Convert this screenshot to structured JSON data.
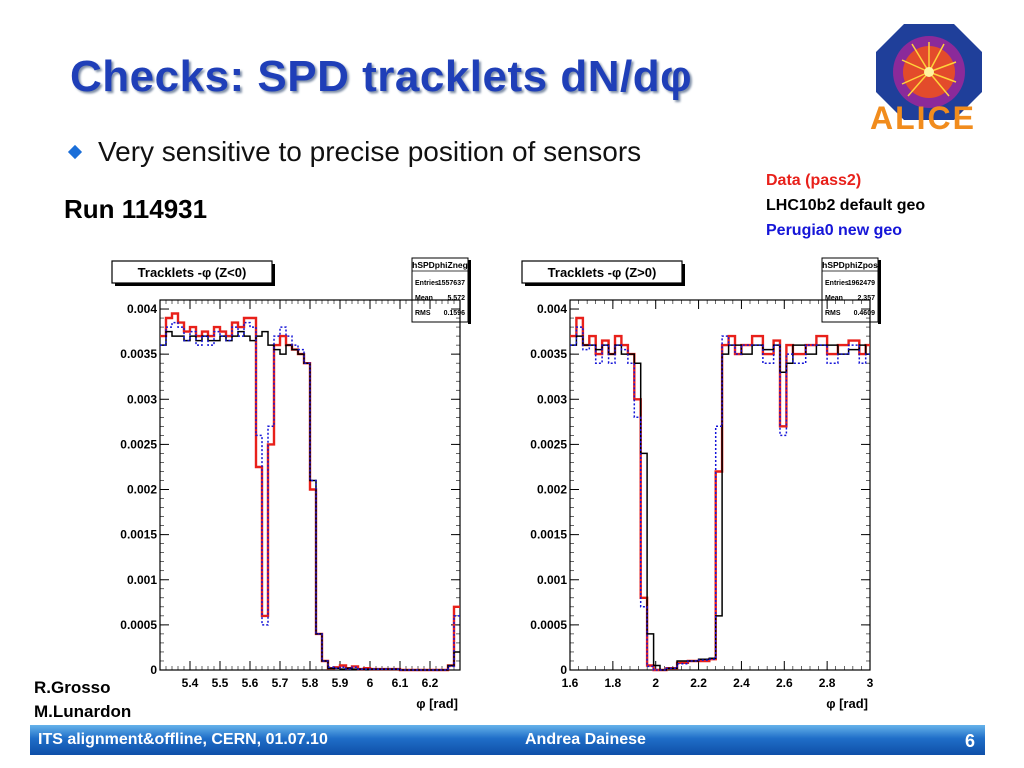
{
  "slide": {
    "title": "Checks: SPD tracklets dN/dφ",
    "bullet": "Very sensitive to precise position of sensors",
    "run_label": "Run 114931",
    "authors": [
      "R.Grosso",
      "M.Lunardon"
    ],
    "logo_text": "ALICE"
  },
  "legend": [
    {
      "label": "Data (pass2)",
      "color": "#e8201a"
    },
    {
      "label": "LHC10b2 default geo",
      "color": "#000000"
    },
    {
      "label": "Perugia0 new geo",
      "color": "#1515d8"
    }
  ],
  "footer": {
    "left": "ITS alignment&offline, CERN, 01.07.10",
    "center": "Andrea Dainese",
    "page": "6"
  },
  "chart_data": [
    {
      "type": "line",
      "title": "Tracklets -φ (Z<0)",
      "xlabel": "φ [rad]",
      "xlim": [
        5.3,
        6.3
      ],
      "ylim": [
        0,
        0.0041
      ],
      "x_ticks": [
        "5.4",
        "5.5",
        "5.6",
        "5.7",
        "5.8",
        "5.9",
        "6",
        "6.1",
        "6.2"
      ],
      "y_ticks": [
        "0",
        "0.0005",
        "0.001",
        "0.0015",
        "0.002",
        "0.0025",
        "0.003",
        "0.0035",
        "0.004"
      ],
      "stats": {
        "name": "hSPDphiZneg",
        "entries": "1557637",
        "mean": "5.572",
        "rms": "0.1596"
      },
      "series": [
        {
          "name": "Data (pass2)",
          "color": "#e8201a",
          "x": [
            5.3,
            5.32,
            5.34,
            5.36,
            5.38,
            5.4,
            5.42,
            5.44,
            5.46,
            5.48,
            5.5,
            5.52,
            5.54,
            5.56,
            5.58,
            5.6,
            5.62,
            5.64,
            5.66,
            5.68,
            5.7,
            5.72,
            5.74,
            5.76,
            5.78,
            5.8,
            5.82,
            5.84,
            5.86,
            5.88,
            5.9,
            5.92,
            5.94,
            5.96,
            5.98,
            6.0,
            6.1,
            6.2,
            6.26,
            6.28
          ],
          "y": [
            0.0037,
            0.0039,
            0.00395,
            0.00385,
            0.00375,
            0.0038,
            0.0037,
            0.00375,
            0.0037,
            0.0038,
            0.00375,
            0.0037,
            0.00385,
            0.0038,
            0.0039,
            0.0039,
            0.00225,
            0.0006,
            0.0025,
            0.0036,
            0.0037,
            0.0036,
            0.00355,
            0.0035,
            0.0034,
            0.002,
            0.0004,
            0.0001,
            2e-05,
            3e-05,
            5e-05,
            2e-05,
            4e-05,
            1e-05,
            2e-05,
            1e-05,
            0.0,
            0.0,
            5e-05,
            0.0007
          ]
        },
        {
          "name": "LHC10b2 default geo",
          "color": "#000000",
          "x": [
            5.3,
            5.32,
            5.34,
            5.36,
            5.38,
            5.4,
            5.42,
            5.44,
            5.46,
            5.48,
            5.5,
            5.52,
            5.54,
            5.56,
            5.58,
            5.6,
            5.62,
            5.64,
            5.66,
            5.68,
            5.7,
            5.72,
            5.74,
            5.76,
            5.78,
            5.8,
            5.82,
            5.84,
            5.86,
            5.88,
            5.9,
            5.92,
            5.94,
            5.96,
            5.98,
            6.0,
            6.1,
            6.2,
            6.26,
            6.28
          ],
          "y": [
            0.0036,
            0.00375,
            0.0037,
            0.0037,
            0.00365,
            0.0037,
            0.00365,
            0.0037,
            0.00365,
            0.00365,
            0.0037,
            0.00365,
            0.0037,
            0.00375,
            0.0037,
            0.00365,
            0.0037,
            0.00375,
            0.0036,
            0.00355,
            0.0035,
            0.0036,
            0.00355,
            0.0035,
            0.0034,
            0.0021,
            0.0004,
            0.0001,
            2e-05,
            2e-05,
            1e-05,
            2e-05,
            1e-05,
            1e-05,
            1e-05,
            1e-05,
            0.0,
            0.0,
            5e-05,
            0.0002
          ]
        },
        {
          "name": "Perugia0 new geo",
          "color": "#1515d8",
          "x": [
            5.3,
            5.32,
            5.34,
            5.36,
            5.38,
            5.4,
            5.42,
            5.44,
            5.46,
            5.48,
            5.5,
            5.52,
            5.54,
            5.56,
            5.58,
            5.6,
            5.62,
            5.64,
            5.66,
            5.68,
            5.7,
            5.72,
            5.74,
            5.76,
            5.78,
            5.8,
            5.82,
            5.84,
            5.86,
            5.88,
            5.9,
            5.92,
            5.94,
            5.96,
            5.98,
            6.0,
            6.1,
            6.2,
            6.26,
            6.28
          ],
          "y": [
            0.0036,
            0.0038,
            0.00385,
            0.0038,
            0.00365,
            0.00375,
            0.0036,
            0.0037,
            0.0036,
            0.00375,
            0.0037,
            0.00365,
            0.0038,
            0.0037,
            0.00385,
            0.0038,
            0.0026,
            0.0005,
            0.0027,
            0.0037,
            0.0038,
            0.0037,
            0.0036,
            0.00355,
            0.0034,
            0.0021,
            0.0004,
            0.0001,
            3e-05,
            2e-05,
            3e-05,
            1e-05,
            3e-05,
            1e-05,
            1e-05,
            1e-05,
            0.0,
            0.0,
            4e-05,
            0.0006
          ]
        }
      ]
    },
    {
      "type": "line",
      "title": "Tracklets -φ (Z>0)",
      "xlabel": "φ [rad]",
      "xlim": [
        1.6,
        3.0
      ],
      "ylim": [
        0,
        0.0041
      ],
      "x_ticks": [
        "1.6",
        "1.8",
        "2",
        "2.2",
        "2.4",
        "2.6",
        "2.8",
        "3"
      ],
      "y_ticks": [
        "0",
        "0.0005",
        "0.001",
        "0.0015",
        "0.002",
        "0.0025",
        "0.003",
        "0.0035",
        "0.004"
      ],
      "stats": {
        "name": "hSPDphiZpos",
        "entries": "1962479",
        "mean": "2.357",
        "rms": "0.4609"
      },
      "series": [
        {
          "name": "Data (pass2)",
          "color": "#e8201a",
          "x": [
            1.6,
            1.63,
            1.66,
            1.69,
            1.72,
            1.75,
            1.78,
            1.81,
            1.84,
            1.87,
            1.9,
            1.93,
            1.96,
            1.99,
            2.02,
            2.05,
            2.1,
            2.15,
            2.2,
            2.25,
            2.28,
            2.31,
            2.34,
            2.37,
            2.4,
            2.45,
            2.5,
            2.55,
            2.58,
            2.61,
            2.64,
            2.7,
            2.75,
            2.8,
            2.85,
            2.9,
            2.95,
            2.98
          ],
          "y": [
            0.0037,
            0.0039,
            0.0036,
            0.0037,
            0.0035,
            0.00365,
            0.0035,
            0.0037,
            0.0036,
            0.0035,
            0.003,
            0.0008,
            5e-05,
            0.0,
            0.0,
            2e-05,
            8e-05,
            0.0001,
            0.0001,
            0.00012,
            0.0022,
            0.0036,
            0.0037,
            0.0035,
            0.0036,
            0.0037,
            0.0035,
            0.00365,
            0.0027,
            0.0036,
            0.0035,
            0.0036,
            0.0037,
            0.0035,
            0.0036,
            0.00365,
            0.0035,
            0.0036
          ]
        },
        {
          "name": "LHC10b2 default geo",
          "color": "#000000",
          "x": [
            1.6,
            1.63,
            1.66,
            1.69,
            1.72,
            1.75,
            1.78,
            1.81,
            1.84,
            1.87,
            1.9,
            1.93,
            1.96,
            1.99,
            2.02,
            2.05,
            2.1,
            2.15,
            2.2,
            2.25,
            2.28,
            2.31,
            2.34,
            2.37,
            2.4,
            2.45,
            2.5,
            2.55,
            2.58,
            2.61,
            2.64,
            2.7,
            2.75,
            2.8,
            2.85,
            2.9,
            2.95,
            2.98
          ],
          "y": [
            0.0036,
            0.0037,
            0.0036,
            0.0036,
            0.00355,
            0.0036,
            0.0035,
            0.0036,
            0.0035,
            0.0035,
            0.0034,
            0.0024,
            0.0004,
            5e-05,
            0.0,
            2e-05,
            0.0001,
            0.0001,
            0.00012,
            0.00013,
            0.0006,
            0.0035,
            0.0036,
            0.0036,
            0.0035,
            0.0036,
            0.00355,
            0.0036,
            0.0033,
            0.0034,
            0.0036,
            0.0035,
            0.0036,
            0.0036,
            0.0035,
            0.00355,
            0.0036,
            0.0035
          ]
        },
        {
          "name": "Perugia0 new geo",
          "color": "#1515d8",
          "x": [
            1.6,
            1.63,
            1.66,
            1.69,
            1.72,
            1.75,
            1.78,
            1.81,
            1.84,
            1.87,
            1.9,
            1.93,
            1.96,
            1.99,
            2.02,
            2.05,
            2.1,
            2.15,
            2.2,
            2.25,
            2.28,
            2.31,
            2.34,
            2.37,
            2.4,
            2.45,
            2.5,
            2.55,
            2.58,
            2.61,
            2.64,
            2.7,
            2.75,
            2.8,
            2.85,
            2.9,
            2.95,
            2.98
          ],
          "y": [
            0.0036,
            0.0038,
            0.00355,
            0.0036,
            0.0034,
            0.0036,
            0.0034,
            0.0036,
            0.00355,
            0.0034,
            0.0028,
            0.0007,
            4e-05,
            0.0,
            0.0,
            2e-05,
            7e-05,
            0.0001,
            0.00011,
            0.00012,
            0.0027,
            0.0037,
            0.0036,
            0.0035,
            0.0036,
            0.0036,
            0.0034,
            0.0036,
            0.0026,
            0.0035,
            0.0034,
            0.0036,
            0.0036,
            0.0034,
            0.0035,
            0.0036,
            0.0034,
            0.0035
          ]
        }
      ]
    }
  ]
}
